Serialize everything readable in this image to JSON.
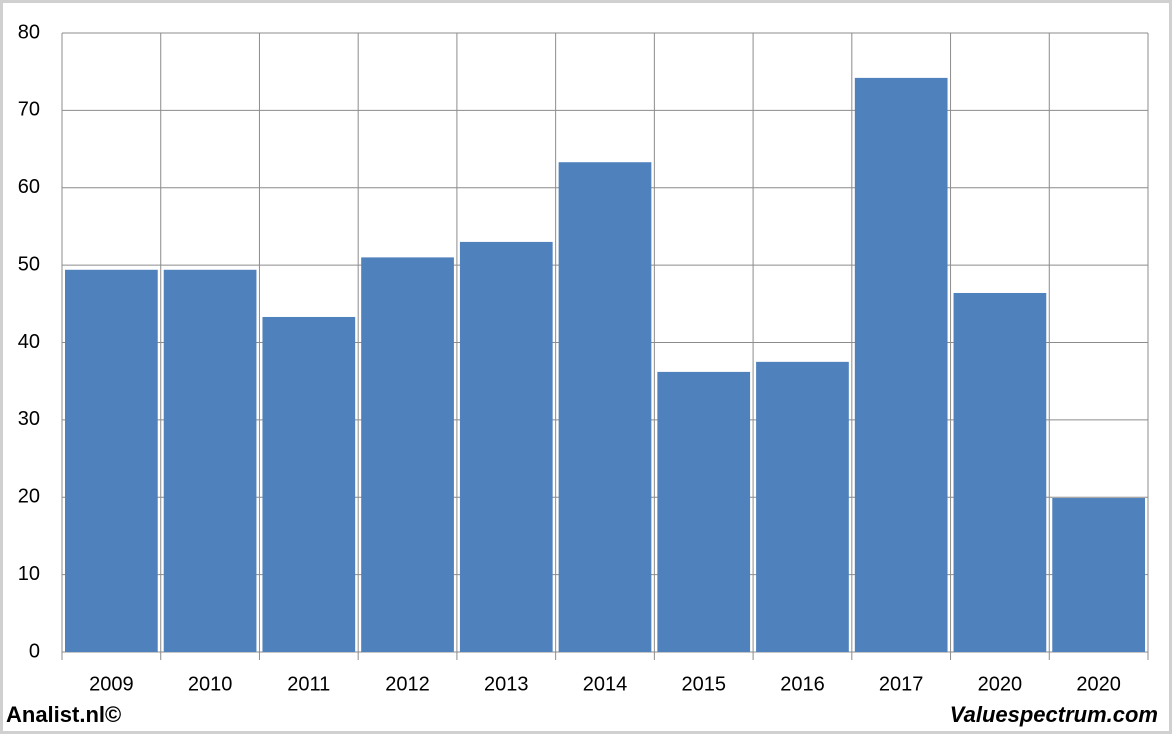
{
  "chart_data": {
    "type": "bar",
    "categories": [
      "2009",
      "2010",
      "2011",
      "2012",
      "2013",
      "2014",
      "2015",
      "2016",
      "2017",
      "2020",
      "2020"
    ],
    "values": [
      49.4,
      49.4,
      43.3,
      51.0,
      53.0,
      63.3,
      36.2,
      37.5,
      74.2,
      46.4,
      19.9
    ],
    "color": "#4f81bd",
    "ylim": [
      0,
      80
    ],
    "yticks": [
      0,
      10,
      20,
      30,
      40,
      50,
      60,
      70,
      80
    ],
    "grid": true,
    "annotations": [
      "Analist.nl©",
      "Valuespectrum.com"
    ]
  }
}
